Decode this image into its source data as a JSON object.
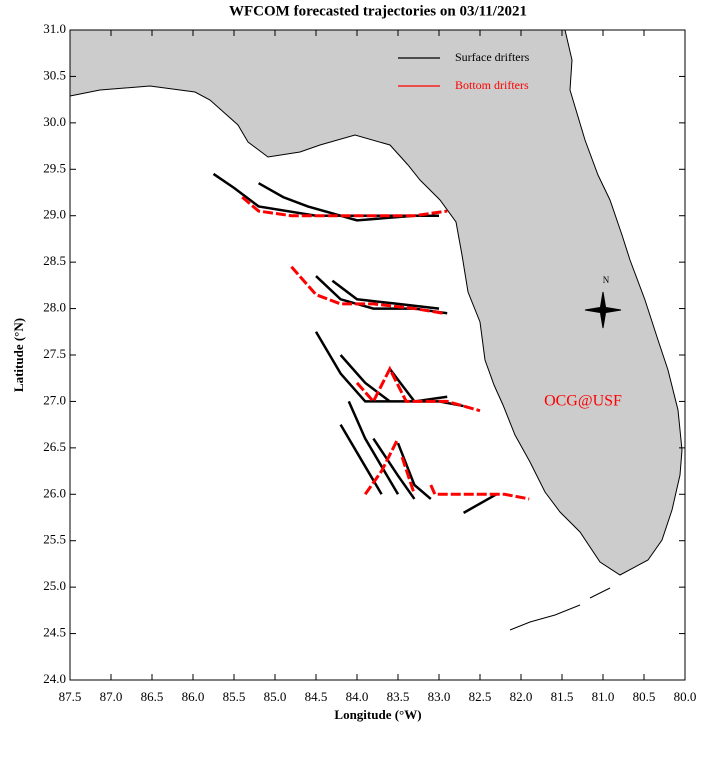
{
  "chart_data": {
    "type": "trajectory",
    "title": "WFCOM forecasted trajectories on 03/11/2021",
    "x_label": "Longitude (°W)",
    "y_label": "Latitude (°N)",
    "xlim": [
      87.5,
      80.0
    ],
    "xticks": [
      87.5,
      {
        "value": 87,
        "label": "87.0"
      },
      86.5,
      {
        "value": 86,
        "label": "86.0"
      },
      85.5,
      {
        "value": 85,
        "label": "85.0"
      },
      84.5,
      {
        "value": 84,
        "label": "84.0"
      },
      83.5,
      {
        "value": 83,
        "label": "83.0"
      },
      82.5,
      {
        "value": 82,
        "label": "82.0"
      },
      81.5,
      {
        "value": 81,
        "label": "81.0"
      },
      80.5,
      {
        "value": 80,
        "label": "80.0"
      }
    ],
    "ylim": [
      24.0,
      31.0
    ],
    "yticks": [
      {
        "value": 24,
        "label": "24.0"
      },
      24.5,
      {
        "value": 25,
        "label": "25.0"
      },
      25.5,
      {
        "value": 26,
        "label": "26.0"
      },
      26.5,
      {
        "value": 27,
        "label": "27.0"
      },
      27.5,
      {
        "value": 28,
        "label": "28.0"
      },
      28.5,
      {
        "value": 29,
        "label": "29.0"
      },
      29.5,
      {
        "value": 30,
        "label": "30.0"
      },
      30.5,
      {
        "value": 31,
        "label": "31.0"
      }
    ],
    "legend": "upper right",
    "annotation": "OCG@USF",
    "annotation_color": "#ff0000",
    "compass_label": "N",
    "series": [
      {
        "name": "Surface drifters",
        "color": "#000000",
        "tracks": [
          {
            "x": [
              85.75,
              85.5,
              85.2,
              84.5,
              83.8,
              83.0
            ],
            "y": [
              29.45,
              29.3,
              29.1,
              29.0,
              29.0,
              29.0
            ]
          },
          {
            "x": [
              85.2,
              84.9,
              84.6,
              84.0,
              83.3
            ],
            "y": [
              29.35,
              29.2,
              29.1,
              28.95,
              29.0
            ]
          },
          {
            "x": [
              84.5,
              84.2,
              83.8,
              83.3,
              82.9
            ],
            "y": [
              28.35,
              28.1,
              28.0,
              28.0,
              27.95
            ]
          },
          {
            "x": [
              84.3,
              84.0,
              83.5,
              83.0
            ],
            "y": [
              28.3,
              28.1,
              28.05,
              28.0
            ]
          },
          {
            "x": [
              84.5,
              84.2,
              83.9,
              83.5,
              83.0,
              82.7
            ],
            "y": [
              27.75,
              27.3,
              27.0,
              27.0,
              27.0,
              26.95
            ]
          },
          {
            "x": [
              84.2,
              83.9,
              83.6
            ],
            "y": [
              27.5,
              27.2,
              27.0
            ]
          },
          {
            "x": [
              83.6,
              83.3,
              82.9
            ],
            "y": [
              27.35,
              27.0,
              27.05
            ]
          },
          {
            "x": [
              84.1,
              83.9,
              83.7,
              83.5
            ],
            "y": [
              27.0,
              26.6,
              26.3,
              26.0
            ]
          },
          {
            "x": [
              84.2,
              83.9,
              83.7
            ],
            "y": [
              26.75,
              26.3,
              26.0
            ]
          },
          {
            "x": [
              83.8,
              83.5,
              83.3
            ],
            "y": [
              26.6,
              26.2,
              25.95
            ]
          },
          {
            "x": [
              83.5,
              83.3,
              83.1
            ],
            "y": [
              26.55,
              26.1,
              25.95
            ]
          },
          {
            "x": [
              82.7,
              82.3
            ],
            "y": [
              25.8,
              26.0
            ]
          }
        ]
      },
      {
        "name": "Bottom drifters",
        "color": "#ff0000",
        "tracks": [
          {
            "x": [
              85.4,
              85.2,
              84.8,
              84.3,
              83.8,
              83.3,
              82.9
            ],
            "y": [
              29.2,
              29.05,
              29.0,
              29.0,
              29.0,
              29.0,
              29.05
            ]
          },
          {
            "x": [
              84.8,
              84.5,
              84.2,
              83.8,
              83.3,
              82.95
            ],
            "y": [
              28.45,
              28.15,
              28.05,
              28.05,
              28.0,
              27.95
            ]
          },
          {
            "x": [
              84.0,
              83.8,
              83.6,
              83.4,
              82.9,
              82.7,
              82.5
            ],
            "y": [
              27.2,
              27.0,
              27.35,
              27.0,
              27.0,
              26.95,
              26.9
            ]
          },
          {
            "x": [
              83.9,
              83.7,
              83.5
            ],
            "y": [
              26.0,
              26.25,
              26.6
            ]
          },
          {
            "x": [
              83.45,
              83.3
            ],
            "y": [
              26.4,
              26.0
            ]
          },
          {
            "x": [
              83.1,
              83.05,
              82.6,
              82.2,
              81.9
            ],
            "y": [
              26.1,
              26.0,
              26.0,
              26.0,
              25.95
            ]
          }
        ]
      }
    ]
  }
}
